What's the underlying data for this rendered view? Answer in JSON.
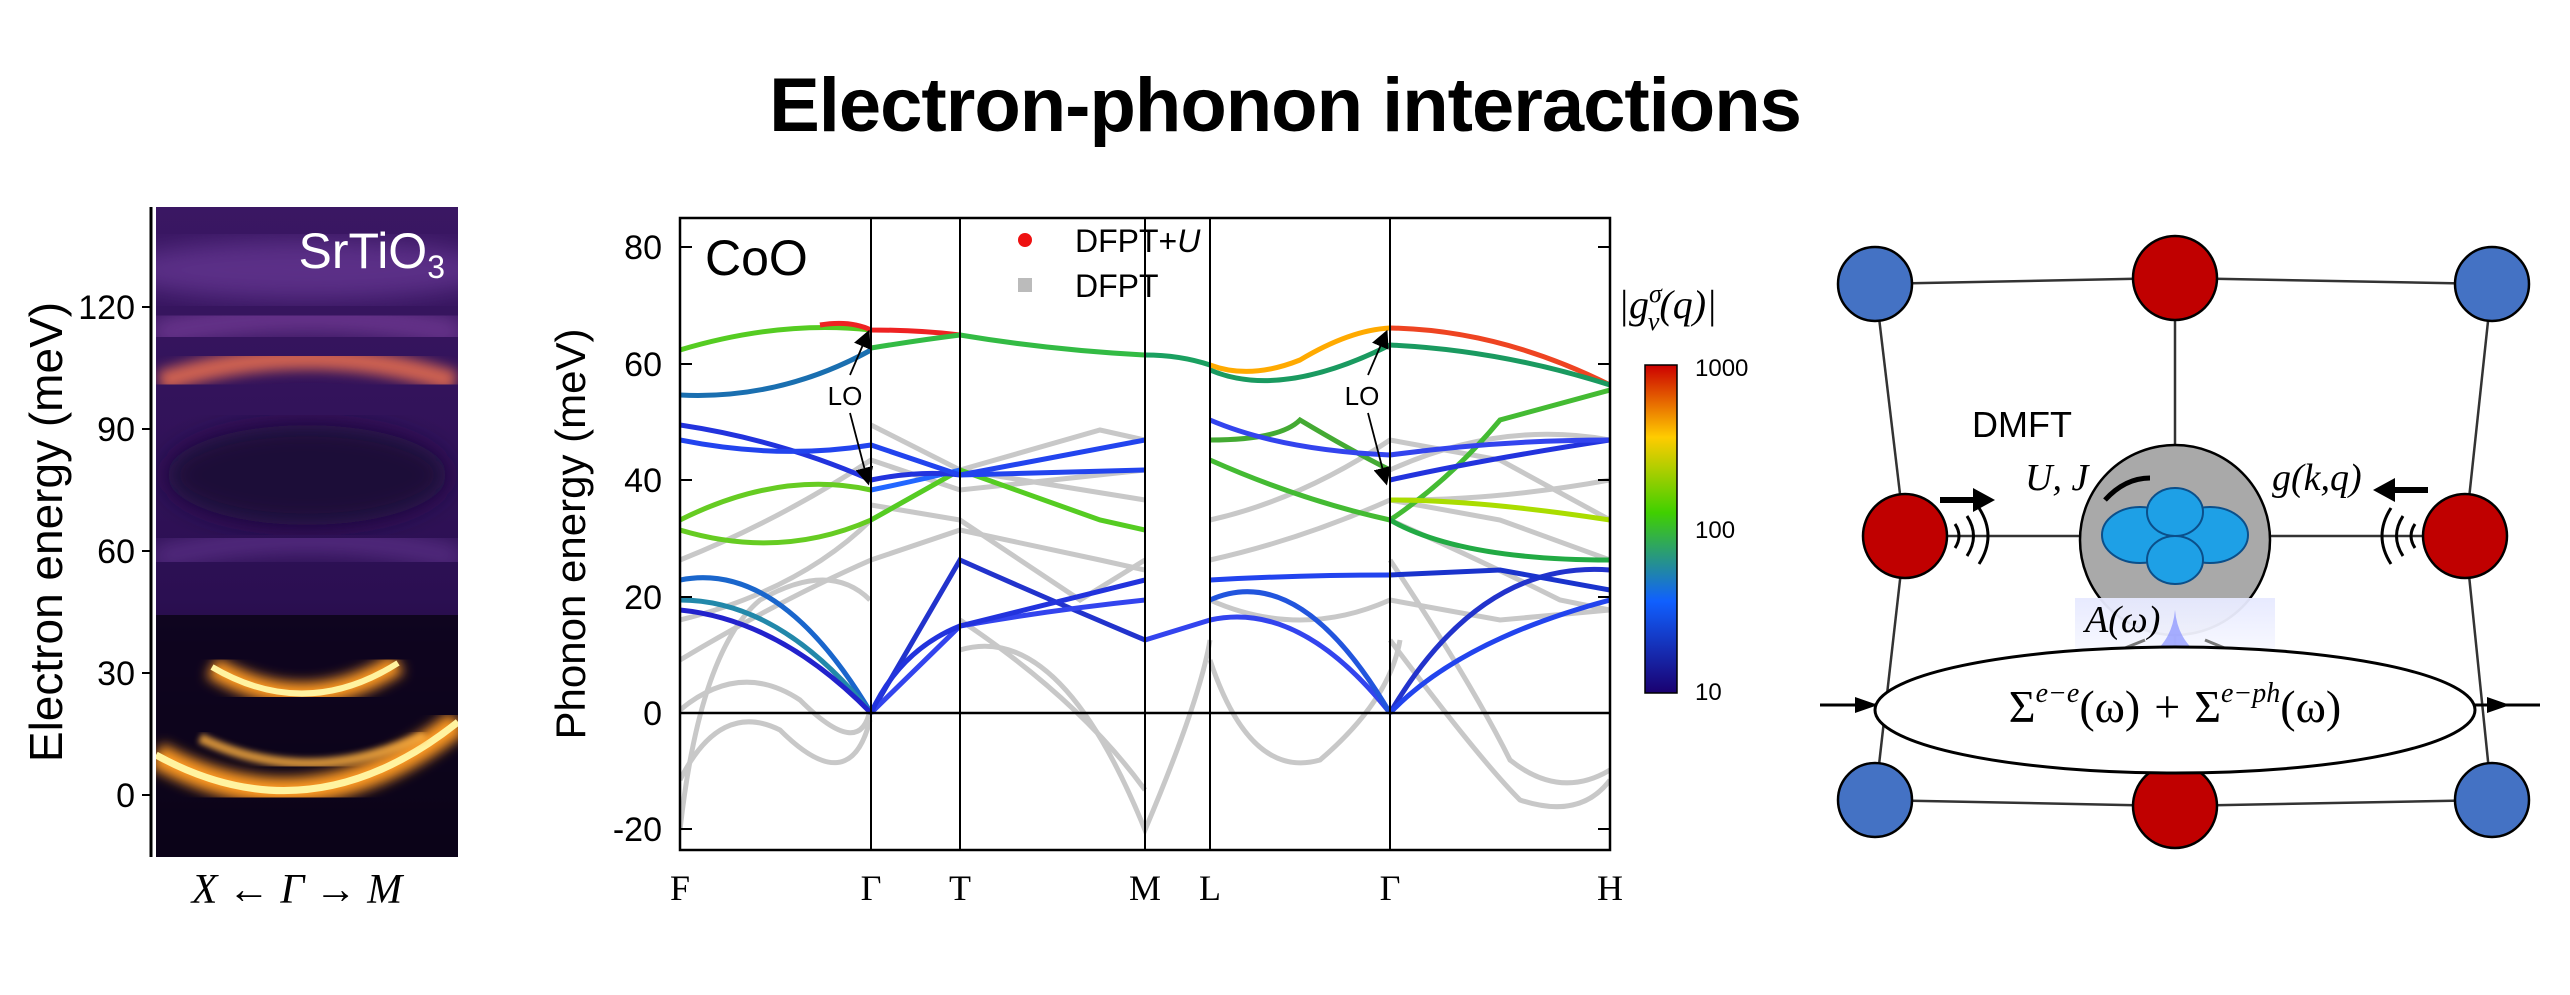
{
  "title": "Electron-phonon interactions",
  "panel_a": {
    "material": "SrTiO",
    "material_sub": "3",
    "ylabel": "Electron energy (meV)",
    "yticks": [
      "0",
      "30",
      "60",
      "90",
      "120"
    ],
    "xlabel": "X ← Γ → M"
  },
  "panel_b": {
    "material": "CoO",
    "ylabel": "Phonon energy (meV)",
    "yticks": [
      "-20",
      "0",
      "20",
      "40",
      "60",
      "80"
    ],
    "xticks": [
      "F",
      "Γ",
      "T",
      "M",
      "L",
      "Γ",
      "H"
    ],
    "legend": [
      {
        "label_main": "DFPT+",
        "label_ital": "U",
        "color": "#ee1111"
      },
      {
        "label_main": "DFPT",
        "label_ital": "",
        "color": "#bbbbbb"
      }
    ],
    "annotations": [
      "LO",
      "LO"
    ],
    "colorbar": {
      "label": "|g",
      "label_sup": "σ",
      "label_sub": "ν",
      "label_tail": "(q)|",
      "ticks": [
        "1000",
        "100",
        "10"
      ],
      "colors": [
        "#cc0000",
        "#ffcc00",
        "#40d000",
        "#1060ff",
        "#1a0070"
      ]
    }
  },
  "panel_c": {
    "method": "DMFT",
    "params": "U, J",
    "coupling": "g(k,q)",
    "spectral": "A(ω)",
    "sigma_ee": "Σ",
    "sigma_ee_sup": "e−e",
    "sigma_arg": "(ω)",
    "plus": "+",
    "sigma_eph": "Σ",
    "sigma_eph_sup": "e−ph",
    "colors": {
      "red_atom": "#c00000",
      "blue_atom": "#4472c4",
      "orbital": "#1ea0e6",
      "core": "#a9a9a9"
    }
  }
}
